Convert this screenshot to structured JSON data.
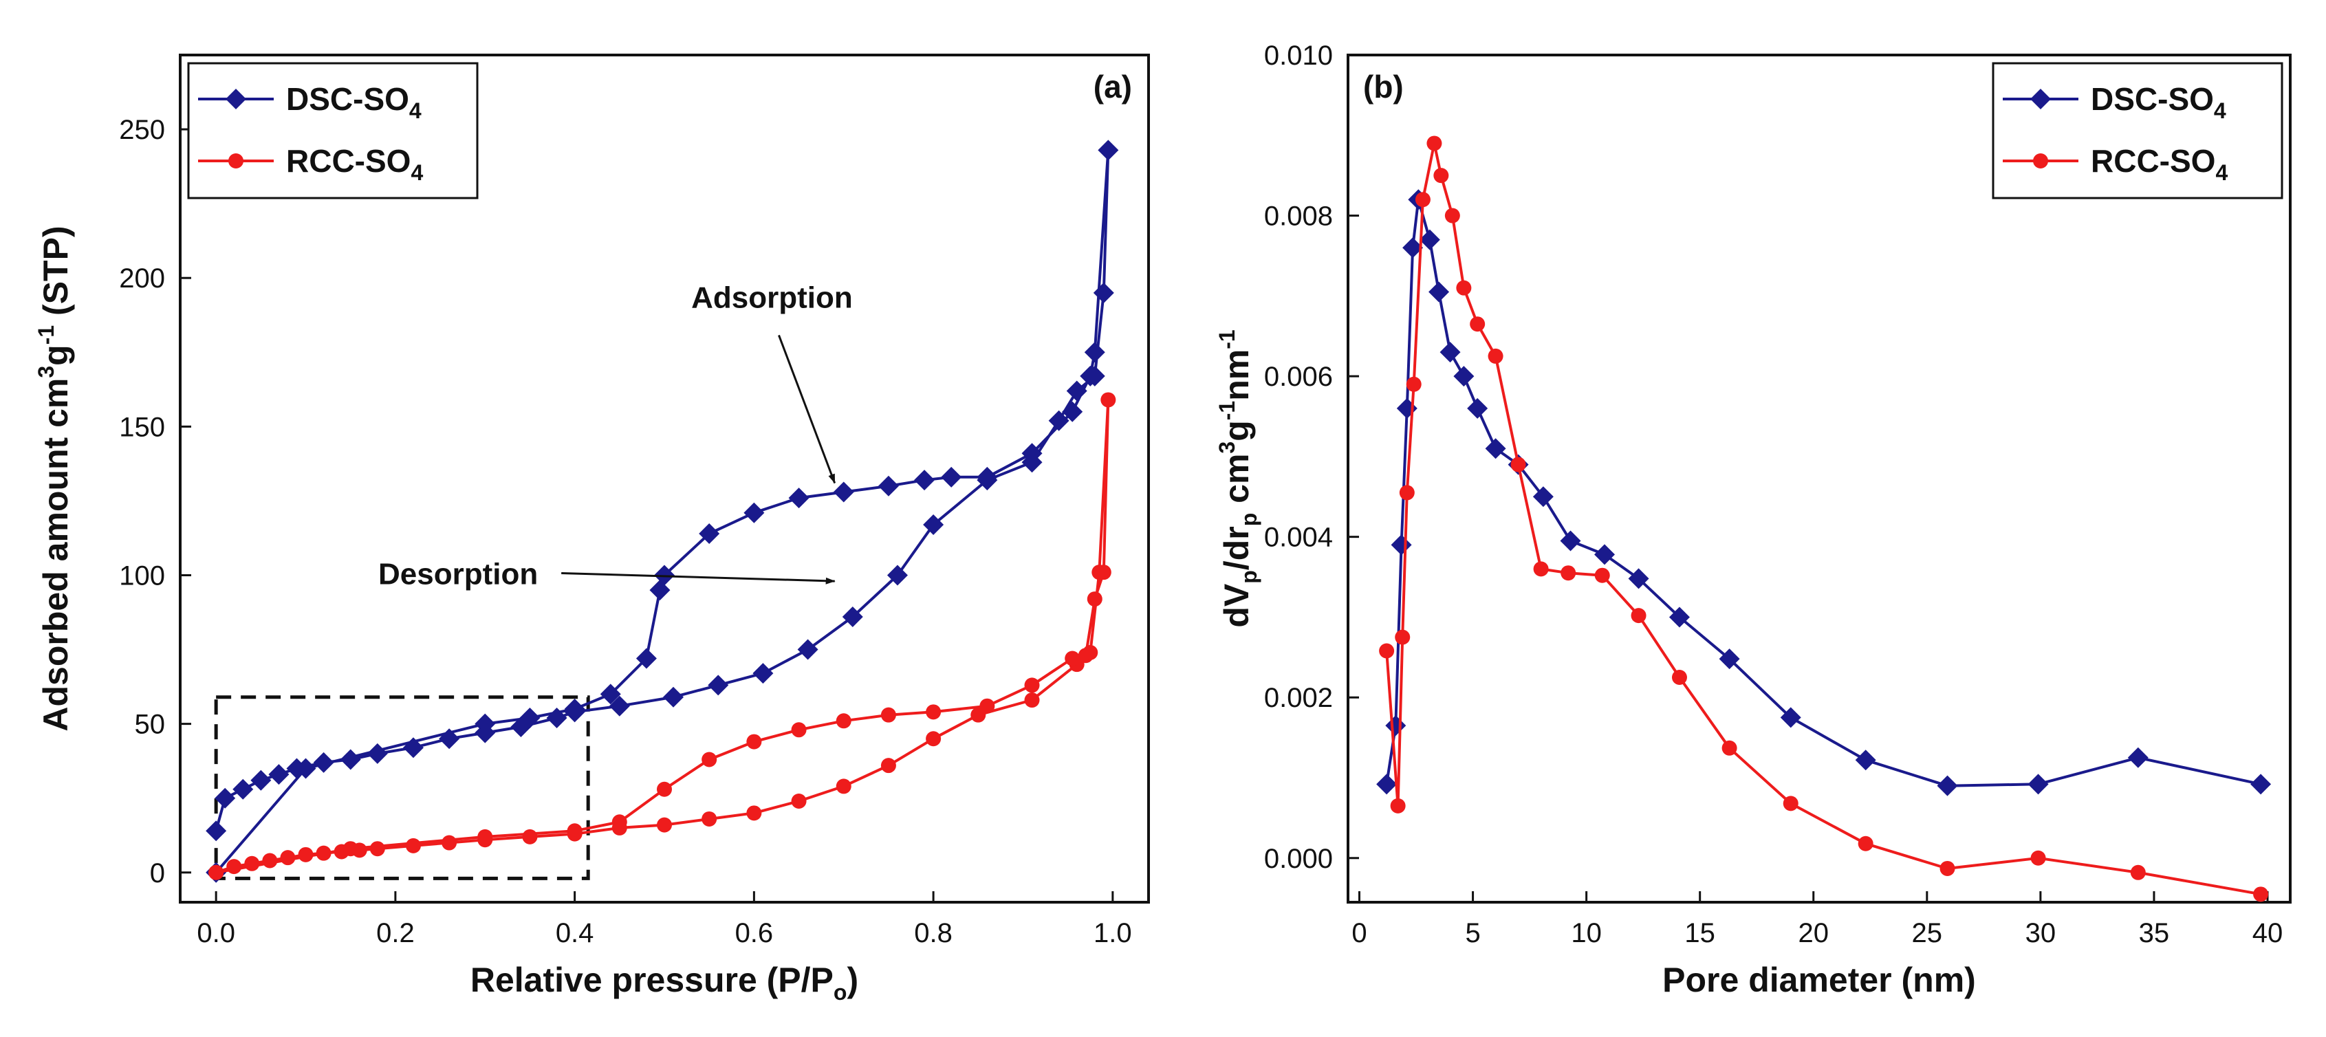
{
  "chart_data": [
    {
      "type": "line",
      "panel_label": "(a)",
      "xlabel": "Relative pressure (P/P",
      "xlabel_sub": "o",
      "xlabel_end": ")",
      "ylabel_parts": [
        "Adsorbed amount cm",
        "3",
        "g",
        "-1",
        " (STP)"
      ],
      "xlim": [
        -0.04,
        1.04
      ],
      "ylim": [
        -10,
        275
      ],
      "xticks": [
        0.0,
        0.2,
        0.4,
        0.6,
        0.8,
        1.0
      ],
      "xtick_labels": [
        "0.0",
        "0.2",
        "0.4",
        "0.6",
        "0.8",
        "1.0"
      ],
      "yticks": [
        0,
        50,
        100,
        150,
        200,
        250
      ],
      "ytick_labels": [
        "0",
        "50",
        "100",
        "150",
        "200",
        "250"
      ],
      "legend_position": "top-left",
      "annotations": [
        {
          "text": "Adsorption",
          "x": 0.62,
          "y": 190,
          "arrow_to": [
            0.69,
            131
          ]
        },
        {
          "text": "Desorption",
          "x": 0.27,
          "y": 97,
          "arrow_to": [
            0.69,
            98
          ]
        }
      ],
      "highlight_box": {
        "x0": 0.0,
        "x1": 0.415,
        "y0": -2,
        "y1": 59
      },
      "series": [
        {
          "name": "DSC-SO",
          "name_sub": "4",
          "color": "#1a1a8c",
          "marker": "diamond",
          "x": [
            0.0,
            0.01,
            0.03,
            0.05,
            0.07,
            0.09,
            0.12,
            0.15,
            0.18,
            0.22,
            0.26,
            0.3,
            0.34,
            0.38,
            0.4,
            0.45,
            0.51,
            0.56,
            0.61,
            0.66,
            0.71,
            0.76,
            0.8,
            0.86,
            0.91,
            0.94,
            0.96,
            0.98,
            0.99,
            0.995,
            0.98,
            0.975,
            0.955,
            0.91,
            0.86,
            0.82,
            0.79,
            0.75,
            0.7,
            0.65,
            0.6,
            0.55,
            0.5,
            0.495,
            0.48,
            0.44,
            0.4,
            0.35,
            0.3,
            0.1,
            0.0
          ],
          "y": [
            14,
            25,
            28,
            31,
            33,
            35,
            37,
            38,
            40,
            42,
            45,
            47,
            49,
            52,
            54,
            56,
            59,
            63,
            67,
            75,
            86,
            100,
            117,
            132,
            138,
            152,
            162,
            167,
            195,
            243,
            175,
            167,
            155,
            141,
            133,
            133,
            132,
            130,
            128,
            126,
            121,
            114,
            100,
            95,
            72,
            60,
            55,
            52,
            50,
            35,
            0
          ]
        },
        {
          "name": "RCC-SO",
          "name_sub": "4",
          "color": "#ee1c1c",
          "marker": "circle",
          "x": [
            0.0,
            0.02,
            0.04,
            0.06,
            0.08,
            0.1,
            0.12,
            0.14,
            0.16,
            0.18,
            0.22,
            0.26,
            0.3,
            0.35,
            0.4,
            0.45,
            0.5,
            0.55,
            0.6,
            0.65,
            0.7,
            0.75,
            0.8,
            0.85,
            0.91,
            0.96,
            0.97,
            0.98,
            0.99,
            0.995,
            0.985,
            0.975,
            0.955,
            0.91,
            0.86,
            0.8,
            0.75,
            0.7,
            0.65,
            0.6,
            0.55,
            0.5,
            0.45,
            0.4,
            0.3,
            0.15,
            0.0
          ],
          "y": [
            0,
            2,
            3,
            4,
            5,
            6,
            6.5,
            7,
            7.5,
            8,
            9,
            10,
            11,
            12,
            13,
            15,
            16,
            18,
            20,
            24,
            29,
            36,
            45,
            53,
            58,
            70,
            73,
            92,
            101,
            159,
            101,
            74,
            72,
            63,
            56,
            54,
            53,
            51,
            48,
            44,
            38,
            28,
            17,
            14,
            12,
            8,
            0
          ]
        }
      ]
    },
    {
      "type": "line",
      "panel_label": "(b)",
      "xlabel": "Pore diameter (nm)",
      "ylabel_parts": [
        "dV",
        "p",
        "/dr",
        "p",
        " cm",
        "3",
        "g",
        "-1",
        "nm",
        "-1"
      ],
      "xlim": [
        -0.5,
        41
      ],
      "ylim": [
        -0.00055,
        0.01
      ],
      "xticks": [
        0,
        5,
        10,
        15,
        20,
        25,
        30,
        35,
        40
      ],
      "xtick_labels": [
        "0",
        "5",
        "10",
        "15",
        "20",
        "25",
        "30",
        "35",
        "40"
      ],
      "yticks": [
        0.0,
        0.002,
        0.004,
        0.006,
        0.008,
        0.01
      ],
      "ytick_labels": [
        "0.000",
        "0.002",
        "0.004",
        "0.006",
        "0.008",
        "0.010"
      ],
      "legend_position": "top-right",
      "series": [
        {
          "name": "DSC-SO",
          "name_sub": "4",
          "color": "#1a1a8c",
          "marker": "diamond",
          "x": [
            1.2,
            1.6,
            1.85,
            2.1,
            2.35,
            2.6,
            3.1,
            3.5,
            4.0,
            4.6,
            5.2,
            6.0,
            7.0,
            8.1,
            9.3,
            10.8,
            12.3,
            14.1,
            16.3,
            19.0,
            22.3,
            25.9,
            29.9,
            34.3,
            39.7
          ],
          "y": [
            0.00092,
            0.00165,
            0.0039,
            0.0056,
            0.0076,
            0.0082,
            0.0077,
            0.00705,
            0.0063,
            0.006,
            0.0056,
            0.0051,
            0.0049,
            0.0045,
            0.00395,
            0.00378,
            0.00348,
            0.003,
            0.00248,
            0.00175,
            0.00122,
            0.0009,
            0.00092,
            0.00125,
            0.00092
          ]
        },
        {
          "name": "RCC-SO",
          "name_sub": "4",
          "color": "#ee1c1c",
          "marker": "circle",
          "x": [
            1.2,
            1.7,
            1.9,
            2.1,
            2.4,
            2.8,
            3.3,
            3.6,
            4.1,
            4.6,
            5.2,
            6.0,
            7.0,
            8.0,
            9.2,
            10.7,
            12.3,
            14.1,
            16.3,
            19.0,
            22.3,
            25.9,
            29.9,
            34.3,
            39.7
          ],
          "y": [
            0.00258,
            0.00065,
            0.00275,
            0.00455,
            0.0059,
            0.0082,
            0.0089,
            0.0085,
            0.008,
            0.0071,
            0.00665,
            0.00625,
            0.0049,
            0.0036,
            0.00355,
            0.00352,
            0.00302,
            0.00225,
            0.00137,
            0.00068,
            0.00018,
            -0.00013,
            0.0,
            -0.00018,
            -0.00045
          ]
        }
      ]
    }
  ]
}
